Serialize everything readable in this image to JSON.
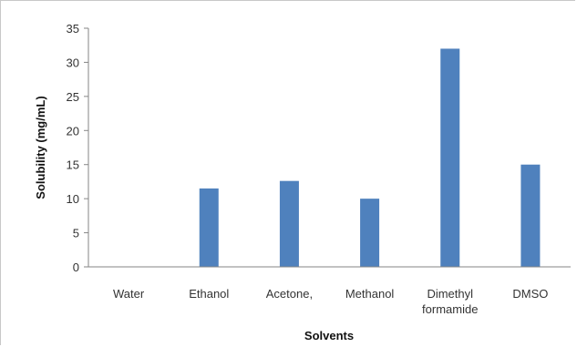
{
  "chart_data": {
    "type": "bar",
    "title": "",
    "xlabel": "Solvents",
    "ylabel": "Solubility (mg/mL)",
    "categories": [
      [
        "Water"
      ],
      [
        "Ethanol"
      ],
      [
        "Acetone,"
      ],
      [
        "Methanol"
      ],
      [
        "Dimethyl",
        "formamide"
      ],
      [
        "DMSO"
      ]
    ],
    "values": [
      0,
      11.5,
      12.6,
      10.0,
      32.0,
      15.0
    ],
    "ylim": [
      0,
      35
    ],
    "yticks": [
      0,
      5,
      10,
      15,
      20,
      25,
      30,
      35
    ],
    "grid": false,
    "legend": "none",
    "bar_color": "#4f81bd",
    "axis_color": "#868686"
  }
}
